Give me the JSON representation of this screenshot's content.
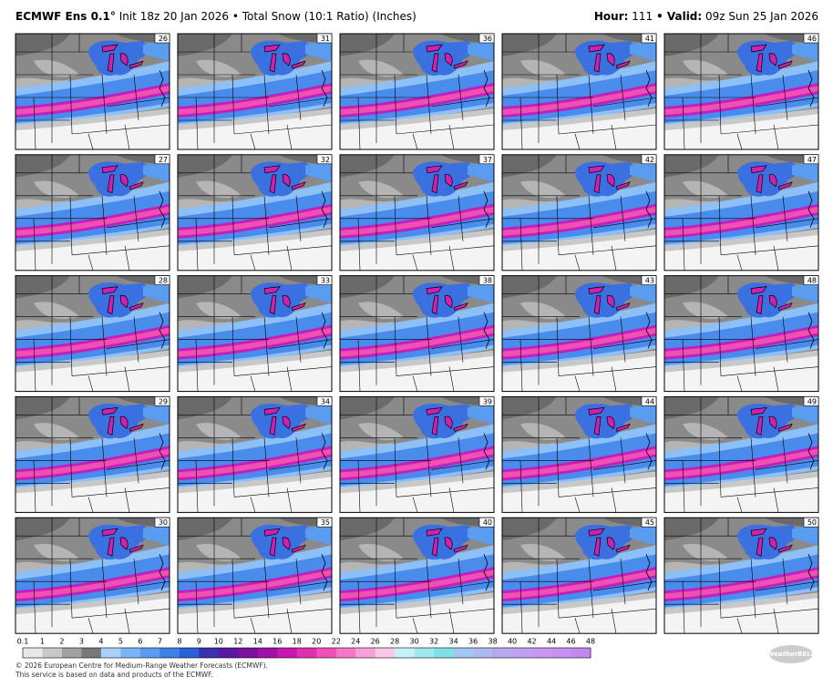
{
  "header": {
    "model": "ECMWF Ens 0.1°",
    "description": "Init 18z 20 Jan 2026 • Total Snow (10:1 Ratio) (Inches)",
    "hour_label": "Hour:",
    "hour": "111",
    "valid_label": "• Valid:",
    "valid": "09z Sun 25 Jan 2026"
  },
  "panels": [
    "26",
    "31",
    "36",
    "41",
    "46",
    "27",
    "32",
    "37",
    "42",
    "47",
    "28",
    "33",
    "38",
    "43",
    "48",
    "29",
    "34",
    "39",
    "44",
    "49",
    "30",
    "35",
    "40",
    "45",
    "50"
  ],
  "colorbar": {
    "labels": [
      "0.1",
      "1",
      "2",
      "3",
      "4",
      "5",
      "6",
      "7",
      "8",
      "9",
      "10",
      "12",
      "14",
      "16",
      "18",
      "20",
      "22",
      "24",
      "26",
      "28",
      "30",
      "32",
      "34",
      "36",
      "38",
      "40",
      "42",
      "44",
      "46",
      "48"
    ],
    "colors": [
      "#e8e8e8",
      "#c8c8c8",
      "#a0a0a0",
      "#787878",
      "#a8d0fa",
      "#7ab4f6",
      "#5a9cf0",
      "#3c80e8",
      "#2a60d8",
      "#3a30b0",
      "#5a1aa0",
      "#7a10a0",
      "#a010a8",
      "#c818b0",
      "#e030b0",
      "#f050b8",
      "#f478c8",
      "#f8a0d8",
      "#fcc8e8",
      "#c8f0f8",
      "#a0e8f0",
      "#80e0e8",
      "#a0c8f0",
      "#b0b8f0",
      "#b8a8f0",
      "#c0a0f0",
      "#c898f0",
      "#c890f0",
      "#c088f0"
    ]
  },
  "footer": {
    "line1": "© 2026 European Centre for Medium-Range Weather Forecasts (ECMWF).",
    "line2": "This service is based on data and products of the ECMWF.",
    "logo": "WeatherBELL"
  }
}
